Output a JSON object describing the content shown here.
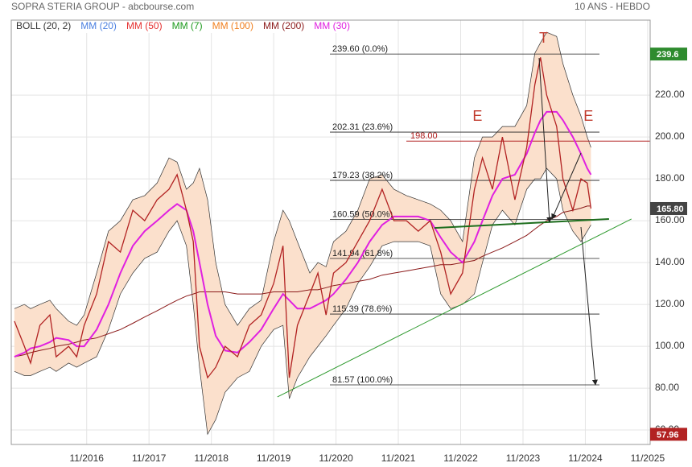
{
  "chart_data": {
    "type": "line",
    "title": "SOPRA STERIA GROUP - abcbourse.com",
    "subtitle": "10 ANS - HEBDO",
    "xlim": [
      2015.62,
      2025.87
    ],
    "ylim": [
      53.1,
      255.8
    ],
    "xticks": [
      {
        "value": 2016.83,
        "label": "11/2016"
      },
      {
        "value": 2017.83,
        "label": "11/2017"
      },
      {
        "value": 2018.83,
        "label": "11/2018"
      },
      {
        "value": 2019.83,
        "label": "11/2019"
      },
      {
        "value": 2020.83,
        "label": "11/2020"
      },
      {
        "value": 2021.83,
        "label": "11/2021"
      },
      {
        "value": 2022.83,
        "label": "11/2022"
      },
      {
        "value": 2023.83,
        "label": "11/2023"
      },
      {
        "value": 2024.83,
        "label": "11/2024"
      },
      {
        "value": 2025.83,
        "label": "11/2025"
      }
    ],
    "yticks": [
      {
        "value": 60,
        "label": "60.00"
      },
      {
        "value": 80,
        "label": "80.00"
      },
      {
        "value": 100,
        "label": "100.00"
      },
      {
        "value": 120,
        "label": "120.00"
      },
      {
        "value": 140,
        "label": "140.00"
      },
      {
        "value": 160,
        "label": "160.00"
      },
      {
        "value": 180,
        "label": "180.00"
      },
      {
        "value": 200,
        "label": "200.00"
      },
      {
        "value": 220,
        "label": "220.00"
      }
    ],
    "grid": true,
    "x": [
      2015.67,
      2015.83,
      2015.93,
      2016.08,
      2016.24,
      2016.34,
      2016.54,
      2016.67,
      2016.79,
      2016.99,
      2017.18,
      2017.37,
      2017.57,
      2017.76,
      2017.96,
      2018.15,
      2018.28,
      2018.43,
      2018.54,
      2018.64,
      2018.77,
      2018.9,
      2019.05,
      2019.25,
      2019.44,
      2019.63,
      2019.83,
      2019.98,
      2020.08,
      2020.21,
      2020.41,
      2020.54,
      2020.67,
      2020.79,
      2020.99,
      2021.18,
      2021.37,
      2021.57,
      2021.76,
      2021.96,
      2022.15,
      2022.34,
      2022.51,
      2022.67,
      2022.86,
      2023.05,
      2023.18,
      2023.34,
      2023.5,
      2023.7,
      2023.89,
      2024.02,
      2024.11,
      2024.21,
      2024.37,
      2024.47,
      2024.63,
      2024.76,
      2024.86,
      2024.92
    ],
    "values": [
      112,
      100,
      92,
      110,
      115,
      95,
      100,
      95,
      110,
      125,
      150,
      145,
      165,
      160,
      170,
      175,
      182,
      165,
      150,
      100,
      85,
      90,
      100,
      95,
      110,
      115,
      130,
      148,
      85,
      110,
      125,
      135,
      115,
      135,
      140,
      150,
      160,
      175,
      160,
      160,
      155,
      160,
      145,
      125,
      135,
      175,
      190,
      175,
      200,
      170,
      195,
      225,
      238,
      220,
      205,
      180,
      165,
      180,
      178,
      165.8
    ],
    "color": "#b22222",
    "indicators": [
      {
        "name": "BOLL (20, 2)",
        "color": "#333333",
        "fill": "#fbe0cc",
        "upper": [
          118,
          120,
          118,
          120,
          122,
          118,
          112,
          110,
          115,
          135,
          155,
          160,
          170,
          172,
          178,
          190,
          188,
          175,
          178,
          185,
          170,
          140,
          120,
          110,
          118,
          122,
          150,
          165,
          160,
          150,
          135,
          140,
          138,
          150,
          155,
          165,
          180,
          182,
          175,
          172,
          170,
          168,
          165,
          160,
          150,
          190,
          200,
          200,
          205,
          205,
          215,
          240,
          245,
          250,
          248,
          235,
          220,
          210,
          200,
          195
        ],
        "lower": [
          88,
          86,
          86,
          88,
          90,
          88,
          92,
          90,
          92,
          95,
          108,
          125,
          135,
          142,
          145,
          155,
          160,
          148,
          120,
          90,
          58,
          65,
          78,
          85,
          88,
          100,
          108,
          110,
          75,
          85,
          95,
          100,
          105,
          110,
          118,
          130,
          138,
          148,
          150,
          150,
          150,
          148,
          125,
          118,
          120,
          125,
          140,
          158,
          165,
          158,
          175,
          180,
          180,
          185,
          180,
          165,
          155,
          150,
          155,
          158
        ]
      },
      {
        "name": "MM (20)",
        "color": "#4a7fe0"
      },
      {
        "name": "MM (50)",
        "color": "#e53030"
      },
      {
        "name": "MM (7)",
        "color": "#1e9a1e"
      },
      {
        "name": "MM (100)",
        "color": "#f08020"
      },
      {
        "name": "MM (200)",
        "color": "#8b1a1a",
        "values": [
          95,
          96,
          97,
          98,
          99,
          100,
          101,
          102,
          103,
          104,
          106,
          108,
          111,
          114,
          117,
          120,
          122,
          124,
          125,
          126,
          126,
          126,
          126,
          125,
          125,
          125,
          126,
          126,
          126,
          126,
          127,
          127,
          128,
          129,
          130,
          131,
          132,
          134,
          135,
          136,
          137,
          138,
          139,
          139,
          140,
          141,
          143,
          145,
          147,
          150,
          153,
          156,
          158,
          160,
          162,
          164,
          165,
          166,
          167,
          167
        ]
      },
      {
        "name": "MM (30)",
        "color": "#e020e0",
        "values": [
          95,
          97,
          99,
          100,
          102,
          104,
          103,
          100,
          100,
          108,
          120,
          135,
          148,
          155,
          160,
          165,
          168,
          165,
          155,
          140,
          120,
          105,
          98,
          97,
          102,
          108,
          118,
          125,
          122,
          118,
          118,
          120,
          122,
          125,
          132,
          140,
          150,
          158,
          162,
          162,
          162,
          160,
          152,
          145,
          140,
          150,
          160,
          172,
          180,
          182,
          192,
          202,
          208,
          212,
          212,
          208,
          200,
          192,
          185,
          182
        ]
      }
    ],
    "fib_levels": [
      {
        "value": 239.6,
        "label": "239.60  (0.0%)"
      },
      {
        "value": 202.31,
        "label": "202.31  (23.6%)"
      },
      {
        "value": 179.23,
        "label": "179.23  (38.2%)"
      },
      {
        "value": 160.59,
        "label": "160.59  (50.0%)"
      },
      {
        "value": 141.94,
        "label": "141.94  (61.8%)"
      },
      {
        "value": 115.39,
        "label": "115.39  (78.6%)"
      },
      {
        "value": 81.57,
        "label": "81.57  (100.0%)"
      }
    ],
    "resistance": {
      "value": 198,
      "label": "198.00",
      "color": "#b22222"
    },
    "price_tags": [
      {
        "value": 239.6,
        "label": "239.6",
        "color": "#2e8b2e"
      },
      {
        "value": 165.8,
        "label": "165.80",
        "color": "#444444"
      },
      {
        "value": 57.96,
        "label": "57.96",
        "color": "#b22222"
      }
    ],
    "trendlines": [
      {
        "x": [
          2019.89,
          2025.57
        ],
        "y": [
          75.8,
          160.8
        ],
        "color": "#2e9a2e"
      },
      {
        "x": [
          2022.41,
          2025.21
        ],
        "y": [
          156.5,
          160.8
        ],
        "color": "#1e6e1e"
      }
    ],
    "annotations": [
      {
        "text": "E",
        "x": 2023.1,
        "y": 209.6
      },
      {
        "text": "T",
        "x": 2024.16,
        "y": 246.9
      },
      {
        "text": "E",
        "x": 2024.88,
        "y": 209.6
      }
    ]
  }
}
